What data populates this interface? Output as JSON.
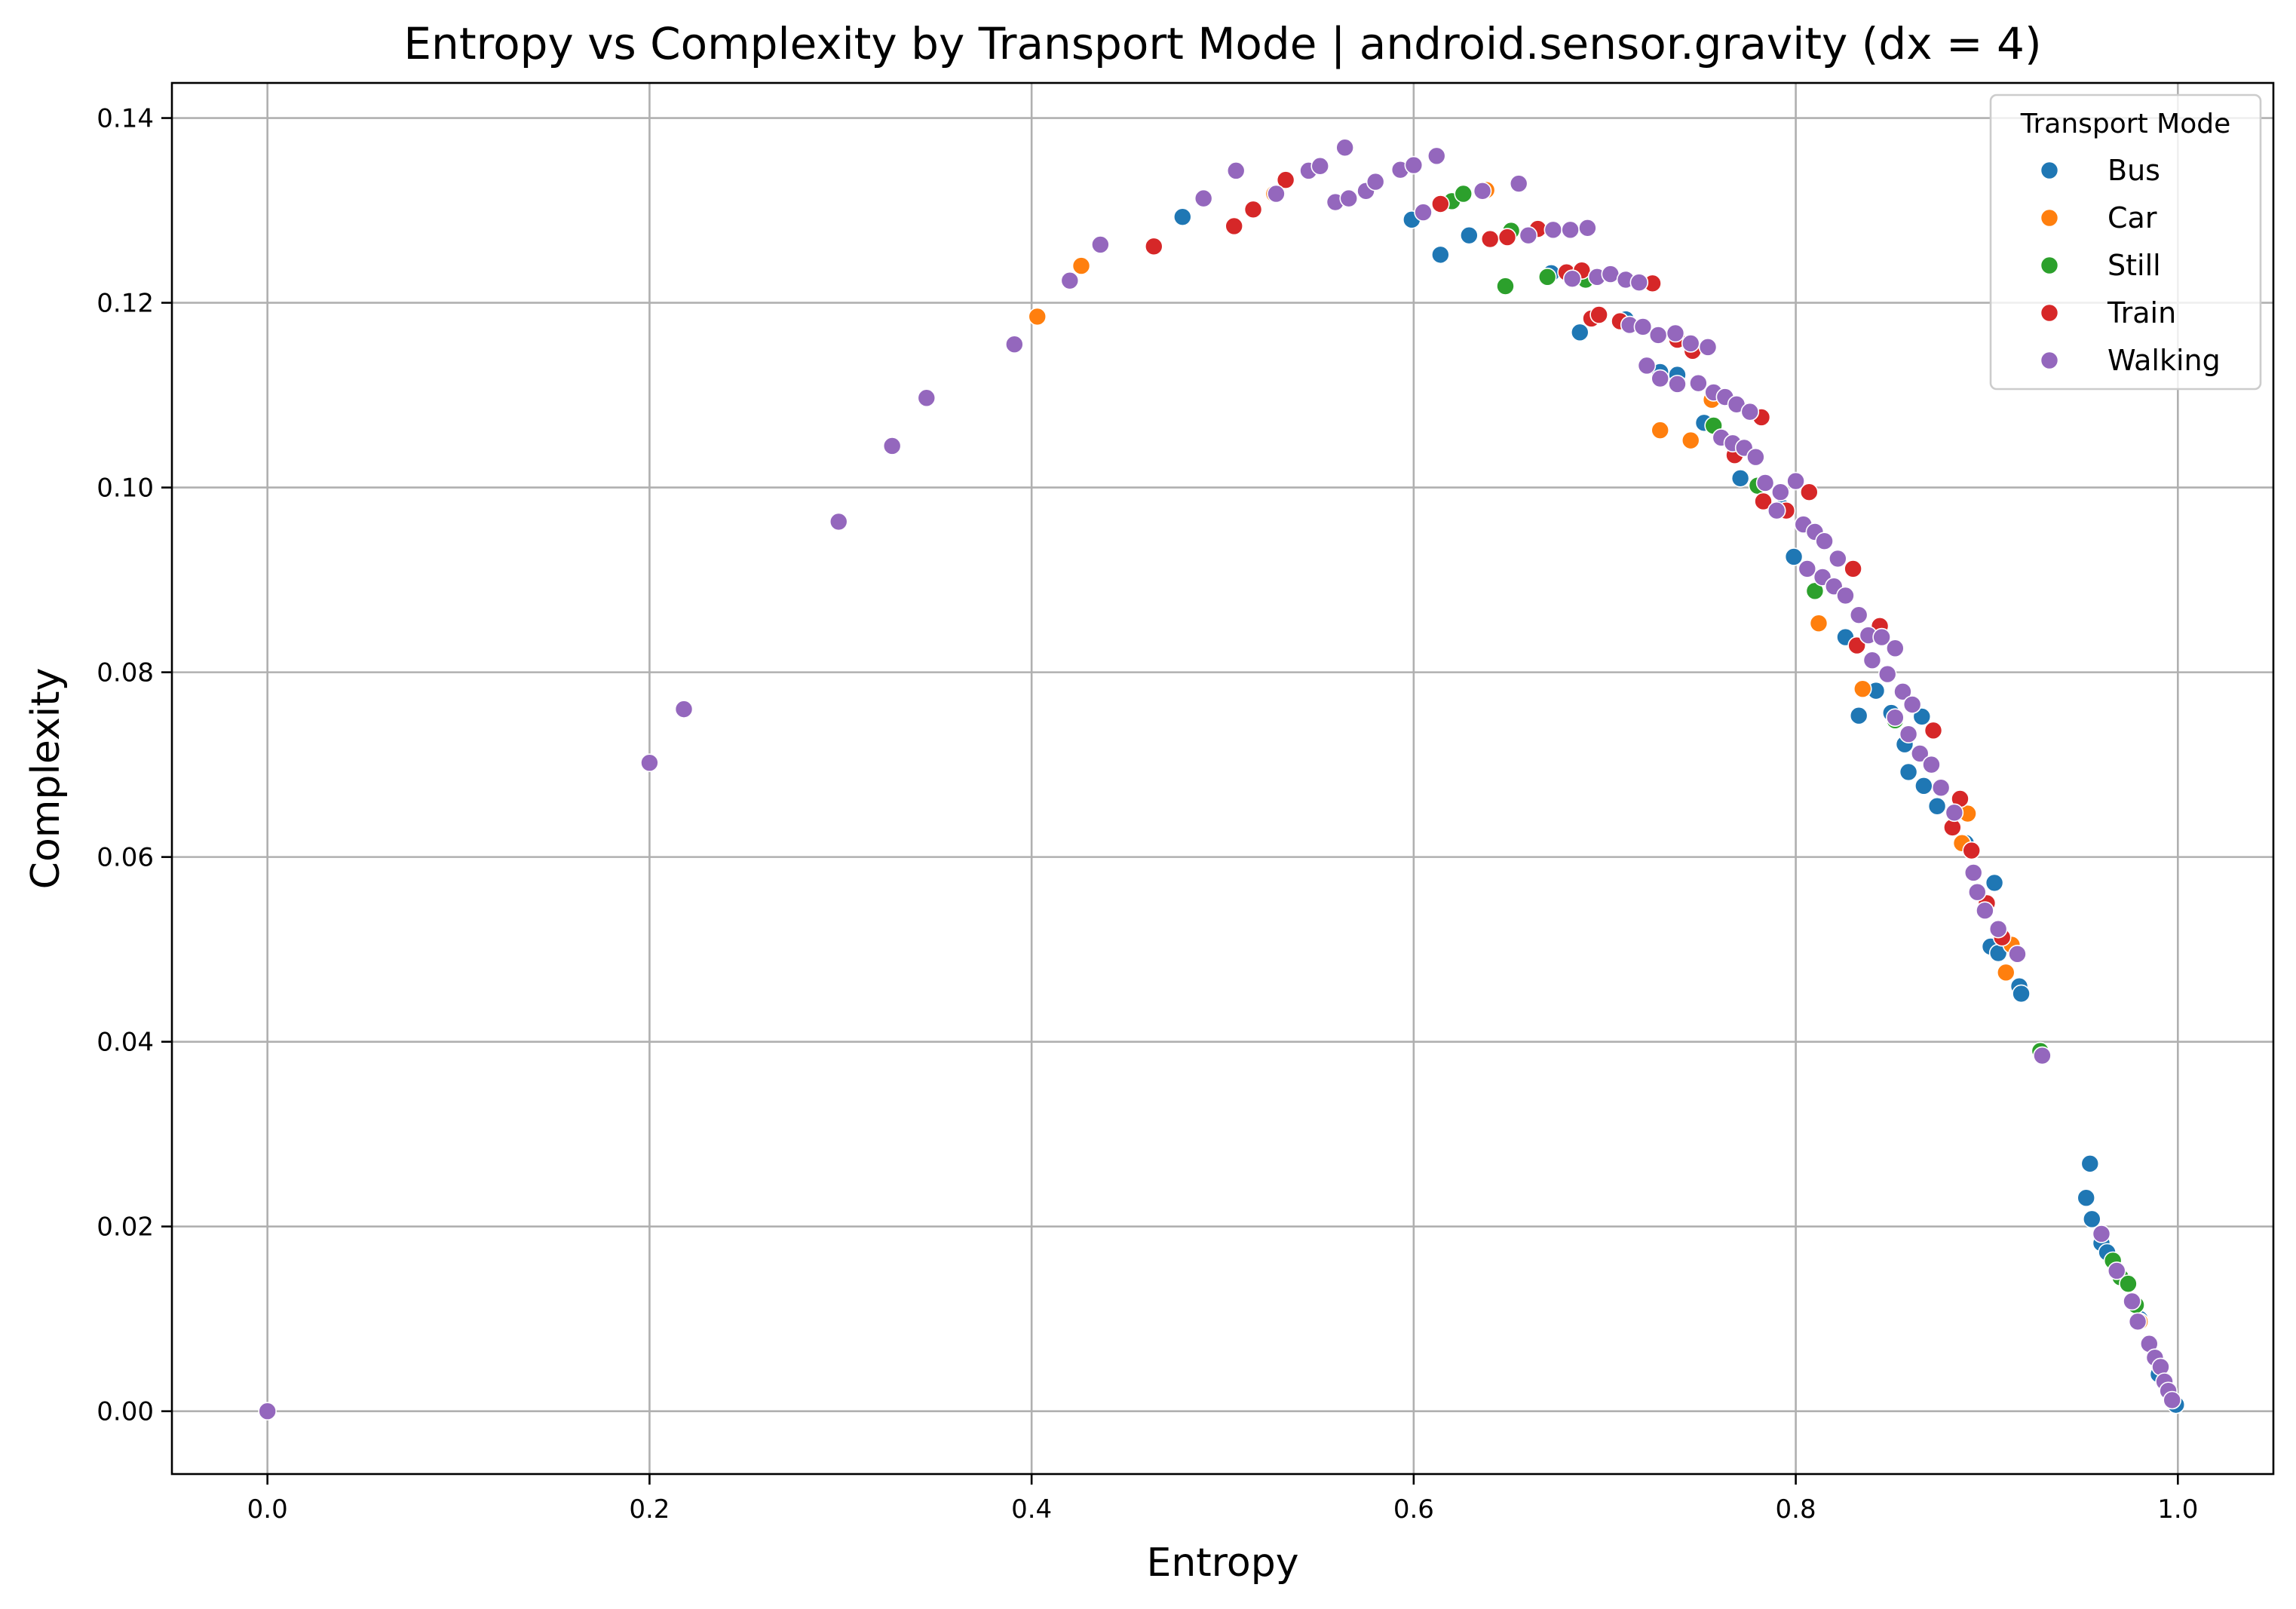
{
  "chart_data": {
    "type": "scatter",
    "title": "Entropy vs Complexity by Transport Mode | android.sensor.gravity (dx = 4)",
    "xlabel": "Entropy",
    "ylabel": "Complexity",
    "xlim": [
      -0.05,
      1.05
    ],
    "ylim": [
      -0.0068,
      0.1438
    ],
    "xticks": [
      0.0,
      0.2,
      0.4,
      0.6,
      0.8,
      1.0
    ],
    "xtick_labels": [
      "0.0",
      "0.2",
      "0.4",
      "0.6",
      "0.8",
      "1.0"
    ],
    "yticks": [
      0.0,
      0.02,
      0.04,
      0.06,
      0.08,
      0.1,
      0.12,
      0.14
    ],
    "ytick_labels": [
      "0.00",
      "0.02",
      "0.04",
      "0.06",
      "0.08",
      "0.10",
      "0.12",
      "0.14"
    ],
    "grid": true,
    "legend": {
      "title": "Transport Mode",
      "position": "top-right"
    },
    "series": [
      {
        "name": "Bus",
        "color": "#1f77b4",
        "points": [
          [
            0.479,
            0.1293
          ],
          [
            0.599,
            0.129
          ],
          [
            0.614,
            0.1252
          ],
          [
            0.629,
            0.1273
          ],
          [
            0.672,
            0.1232
          ],
          [
            0.687,
            0.1168
          ],
          [
            0.711,
            0.1182
          ],
          [
            0.729,
            0.1125
          ],
          [
            0.738,
            0.1122
          ],
          [
            0.752,
            0.107
          ],
          [
            0.771,
            0.101
          ],
          [
            0.793,
            0.0978
          ],
          [
            0.799,
            0.0925
          ],
          [
            0.826,
            0.0838
          ],
          [
            0.833,
            0.0753
          ],
          [
            0.842,
            0.078
          ],
          [
            0.85,
            0.0756
          ],
          [
            0.857,
            0.0722
          ],
          [
            0.866,
            0.0752
          ],
          [
            0.859,
            0.0692
          ],
          [
            0.867,
            0.0677
          ],
          [
            0.874,
            0.0655
          ],
          [
            0.889,
            0.0615
          ],
          [
            0.904,
            0.0572
          ],
          [
            0.902,
            0.0503
          ],
          [
            0.906,
            0.0496
          ],
          [
            0.917,
            0.046
          ],
          [
            0.918,
            0.0452
          ],
          [
            0.954,
            0.0268
          ],
          [
            0.952,
            0.0231
          ],
          [
            0.955,
            0.0208
          ],
          [
            0.96,
            0.0182
          ],
          [
            0.963,
            0.0172
          ],
          [
            0.966,
            0.0162
          ],
          [
            0.98,
            0.01
          ],
          [
            0.99,
            0.004
          ],
          [
            0.999,
            0.0007
          ]
        ]
      },
      {
        "name": "Car",
        "color": "#ff7f0e",
        "points": [
          [
            0.426,
            0.124
          ],
          [
            0.403,
            0.1185
          ],
          [
            0.527,
            0.1318
          ],
          [
            0.638,
            0.1322
          ],
          [
            0.665,
            0.128
          ],
          [
            0.729,
            0.1062
          ],
          [
            0.745,
            0.1051
          ],
          [
            0.756,
            0.1095
          ],
          [
            0.812,
            0.0853
          ],
          [
            0.835,
            0.0782
          ],
          [
            0.89,
            0.0647
          ],
          [
            0.887,
            0.0615
          ],
          [
            0.91,
            0.0475
          ],
          [
            0.913,
            0.0505
          ],
          [
            0.98,
            0.0097
          ]
        ]
      },
      {
        "name": "Still",
        "color": "#2ca02c",
        "points": [
          [
            0.62,
            0.131
          ],
          [
            0.626,
            0.1318
          ],
          [
            0.648,
            0.1218
          ],
          [
            0.651,
            0.1278
          ],
          [
            0.67,
            0.1228
          ],
          [
            0.69,
            0.1225
          ],
          [
            0.757,
            0.1067
          ],
          [
            0.78,
            0.1002
          ],
          [
            0.81,
            0.0888
          ],
          [
            0.852,
            0.0748
          ],
          [
            0.928,
            0.039
          ],
          [
            0.966,
            0.0163
          ],
          [
            0.97,
            0.0145
          ],
          [
            0.974,
            0.0138
          ],
          [
            0.978,
            0.0115
          ]
        ]
      },
      {
        "name": "Train",
        "color": "#d62728",
        "points": [
          [
            0.464,
            0.1261
          ],
          [
            0.506,
            0.1283
          ],
          [
            0.516,
            0.1301
          ],
          [
            0.533,
            0.1333
          ],
          [
            0.614,
            0.1307
          ],
          [
            0.64,
            0.1269
          ],
          [
            0.649,
            0.1271
          ],
          [
            0.665,
            0.128
          ],
          [
            0.68,
            0.1233
          ],
          [
            0.688,
            0.1235
          ],
          [
            0.693,
            0.1183
          ],
          [
            0.697,
            0.1187
          ],
          [
            0.708,
            0.118
          ],
          [
            0.725,
            0.1221
          ],
          [
            0.738,
            0.116
          ],
          [
            0.746,
            0.1148
          ],
          [
            0.768,
            0.1035
          ],
          [
            0.782,
            0.1076
          ],
          [
            0.783,
            0.0985
          ],
          [
            0.795,
            0.0975
          ],
          [
            0.807,
            0.0995
          ],
          [
            0.83,
            0.0912
          ],
          [
            0.832,
            0.0829
          ],
          [
            0.844,
            0.085
          ],
          [
            0.872,
            0.0737
          ],
          [
            0.882,
            0.0632
          ],
          [
            0.886,
            0.0663
          ],
          [
            0.892,
            0.0607
          ],
          [
            0.9,
            0.055
          ],
          [
            0.908,
            0.0513
          ]
        ]
      },
      {
        "name": "Walking",
        "color": "#9467bd",
        "points": [
          [
            0.0,
            0.0
          ],
          [
            0.2,
            0.0702
          ],
          [
            0.218,
            0.076
          ],
          [
            0.299,
            0.0963
          ],
          [
            0.327,
            0.1045
          ],
          [
            0.345,
            0.1097
          ],
          [
            0.391,
            0.1155
          ],
          [
            0.42,
            0.1224
          ],
          [
            0.436,
            0.1263
          ],
          [
            0.49,
            0.1313
          ],
          [
            0.507,
            0.1343
          ],
          [
            0.528,
            0.1318
          ],
          [
            0.545,
            0.1343
          ],
          [
            0.551,
            0.1348
          ],
          [
            0.559,
            0.1309
          ],
          [
            0.564,
            0.1368
          ],
          [
            0.566,
            0.1313
          ],
          [
            0.575,
            0.1321
          ],
          [
            0.58,
            0.1331
          ],
          [
            0.593,
            0.1344
          ],
          [
            0.6,
            0.1349
          ],
          [
            0.605,
            0.1298
          ],
          [
            0.612,
            0.1359
          ],
          [
            0.636,
            0.1321
          ],
          [
            0.655,
            0.1329
          ],
          [
            0.66,
            0.1273
          ],
          [
            0.673,
            0.1279
          ],
          [
            0.682,
            0.1279
          ],
          [
            0.691,
            0.1281
          ],
          [
            0.683,
            0.1226
          ],
          [
            0.696,
            0.1228
          ],
          [
            0.703,
            0.1231
          ],
          [
            0.711,
            0.1225
          ],
          [
            0.718,
            0.1222
          ],
          [
            0.713,
            0.1176
          ],
          [
            0.72,
            0.1174
          ],
          [
            0.728,
            0.1165
          ],
          [
            0.737,
            0.1167
          ],
          [
            0.745,
            0.1156
          ],
          [
            0.754,
            0.1152
          ],
          [
            0.722,
            0.1132
          ],
          [
            0.729,
            0.1118
          ],
          [
            0.738,
            0.1112
          ],
          [
            0.749,
            0.1113
          ],
          [
            0.757,
            0.1103
          ],
          [
            0.763,
            0.1098
          ],
          [
            0.769,
            0.109
          ],
          [
            0.776,
            0.1082
          ],
          [
            0.761,
            0.1054
          ],
          [
            0.767,
            0.1048
          ],
          [
            0.773,
            0.1043
          ],
          [
            0.779,
            0.1033
          ],
          [
            0.784,
            0.1005
          ],
          [
            0.792,
            0.0995
          ],
          [
            0.79,
            0.0975
          ],
          [
            0.8,
            0.1007
          ],
          [
            0.804,
            0.096
          ],
          [
            0.81,
            0.0952
          ],
          [
            0.815,
            0.0942
          ],
          [
            0.822,
            0.0923
          ],
          [
            0.806,
            0.0912
          ],
          [
            0.814,
            0.0903
          ],
          [
            0.82,
            0.0893
          ],
          [
            0.826,
            0.0883
          ],
          [
            0.833,
            0.0862
          ],
          [
            0.838,
            0.084
          ],
          [
            0.845,
            0.0838
          ],
          [
            0.852,
            0.0826
          ],
          [
            0.84,
            0.0813
          ],
          [
            0.848,
            0.0798
          ],
          [
            0.856,
            0.0779
          ],
          [
            0.861,
            0.0765
          ],
          [
            0.852,
            0.0751
          ],
          [
            0.859,
            0.0733
          ],
          [
            0.865,
            0.0712
          ],
          [
            0.871,
            0.07
          ],
          [
            0.876,
            0.0675
          ],
          [
            0.883,
            0.0648
          ],
          [
            0.893,
            0.0583
          ],
          [
            0.895,
            0.0562
          ],
          [
            0.899,
            0.0542
          ],
          [
            0.906,
            0.0522
          ],
          [
            0.916,
            0.0495
          ],
          [
            0.929,
            0.0385
          ],
          [
            0.96,
            0.0192
          ],
          [
            0.968,
            0.0152
          ],
          [
            0.976,
            0.0119
          ],
          [
            0.979,
            0.0097
          ],
          [
            0.985,
            0.0073
          ],
          [
            0.988,
            0.0058
          ],
          [
            0.991,
            0.0048
          ],
          [
            0.993,
            0.0032
          ],
          [
            0.995,
            0.0022
          ],
          [
            0.997,
            0.0012
          ]
        ]
      }
    ]
  }
}
